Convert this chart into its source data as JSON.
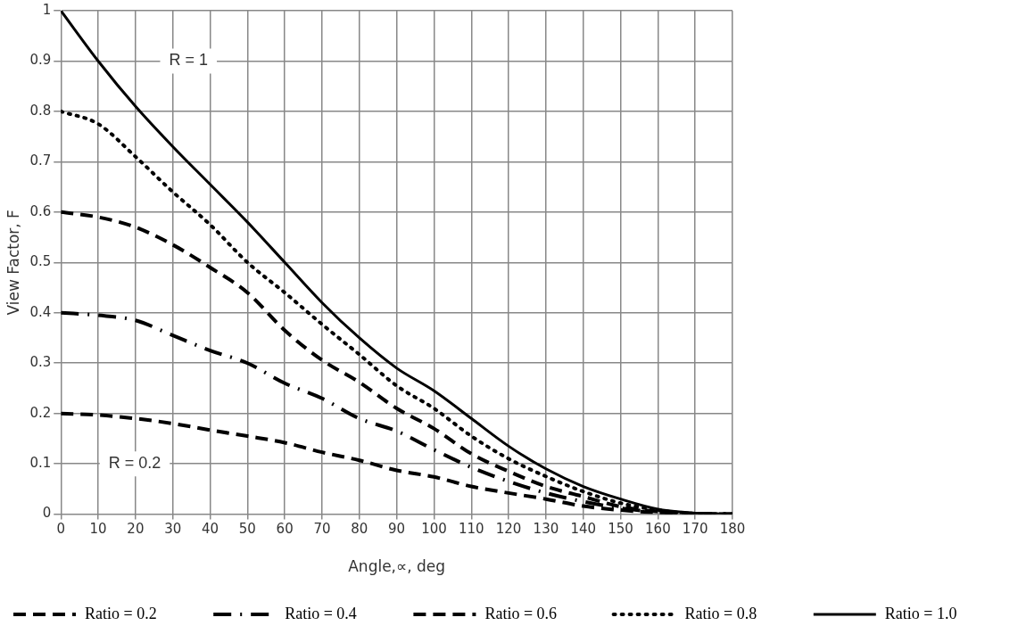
{
  "chart_data": {
    "type": "line",
    "xlabel": "Angle,∝, deg",
    "ylabel": "View Factor, F",
    "x": [
      0,
      10,
      20,
      30,
      40,
      50,
      60,
      70,
      80,
      90,
      100,
      110,
      120,
      130,
      140,
      150,
      160,
      170,
      180
    ],
    "xlim": [
      0,
      180
    ],
    "xticks": [
      0,
      10,
      20,
      30,
      40,
      50,
      60,
      70,
      80,
      90,
      100,
      110,
      120,
      130,
      140,
      150,
      160,
      170,
      180
    ],
    "ylim": [
      0,
      1
    ],
    "yticks": [
      0,
      0.1,
      0.2,
      0.3,
      0.4,
      0.5,
      0.6,
      0.7,
      0.8,
      0.9,
      1
    ],
    "grid": true,
    "legend": "bottom",
    "marker": "none",
    "series": [
      {
        "name": "Ratio = 0.2",
        "color": "#000000",
        "line_style": "dashed",
        "values": [
          0.2,
          0.197,
          0.19,
          0.18,
          0.167,
          0.155,
          0.142,
          0.123,
          0.107,
          0.087,
          0.074,
          0.055,
          0.042,
          0.03,
          0.016,
          0.008,
          0.003,
          0.001,
          0
        ]
      },
      {
        "name": "Ratio = 0.4",
        "color": "#000000",
        "line_style": "dashdot",
        "values": [
          0.4,
          0.395,
          0.385,
          0.355,
          0.325,
          0.3,
          0.26,
          0.23,
          0.19,
          0.165,
          0.128,
          0.093,
          0.065,
          0.042,
          0.025,
          0.012,
          0.004,
          0.001,
          0
        ]
      },
      {
        "name": "Ratio = 0.6",
        "color": "#000000",
        "line_style": "dashed",
        "values": [
          0.6,
          0.59,
          0.57,
          0.535,
          0.49,
          0.44,
          0.365,
          0.306,
          0.262,
          0.21,
          0.17,
          0.12,
          0.085,
          0.055,
          0.035,
          0.015,
          0.005,
          0.001,
          0
        ]
      },
      {
        "name": "Ratio = 0.8",
        "color": "#000000",
        "line_style": "dotted",
        "values": [
          0.8,
          0.775,
          0.71,
          0.64,
          0.575,
          0.5,
          0.44,
          0.377,
          0.317,
          0.255,
          0.21,
          0.155,
          0.11,
          0.075,
          0.045,
          0.022,
          0.008,
          0.001,
          0
        ]
      },
      {
        "name": "Ratio = 1.0",
        "color": "#000000",
        "line_style": "solid",
        "values": [
          1,
          0.9,
          0.81,
          0.73,
          0.655,
          0.58,
          0.5,
          0.42,
          0.35,
          0.29,
          0.245,
          0.19,
          0.135,
          0.09,
          0.055,
          0.03,
          0.01,
          0.002,
          0
        ]
      }
    ],
    "annotations": [
      "R = 1",
      "R = 0.2"
    ]
  }
}
